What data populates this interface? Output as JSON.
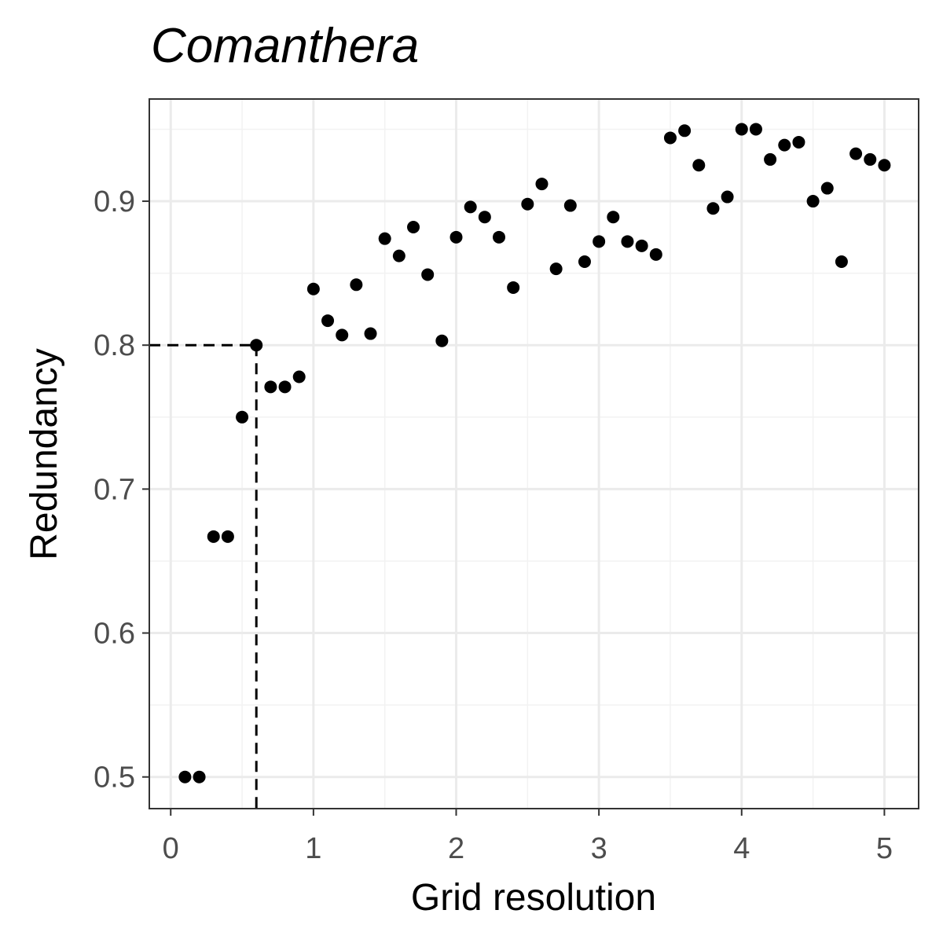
{
  "chart_data": {
    "type": "scatter",
    "title": "Comanthera",
    "xlabel": "Grid resolution",
    "ylabel": "Redundancy",
    "xlim": [
      -0.15,
      5.24
    ],
    "ylim": [
      0.478,
      0.971
    ],
    "x_ticks": [
      0,
      1,
      2,
      3,
      4,
      5
    ],
    "x_tick_labels": [
      "0",
      "1",
      "2",
      "3",
      "4",
      "5"
    ],
    "y_ticks": [
      0.5,
      0.6,
      0.7,
      0.8,
      0.9
    ],
    "y_tick_labels": [
      "0.5",
      "0.6",
      "0.7",
      "0.8",
      "0.9"
    ],
    "grid": true,
    "reference_point": {
      "x": 0.6,
      "y": 0.8
    },
    "x": [
      0.1,
      0.2,
      0.3,
      0.4,
      0.5,
      0.6,
      0.7,
      0.8,
      0.9,
      1.0,
      1.1,
      1.2,
      1.3,
      1.4,
      1.5,
      1.6,
      1.7,
      1.8,
      1.9,
      2.0,
      2.1,
      2.2,
      2.3,
      2.4,
      2.5,
      2.6,
      2.7,
      2.8,
      2.9,
      3.0,
      3.1,
      3.2,
      3.3,
      3.4,
      3.5,
      3.6,
      3.7,
      3.8,
      3.9,
      4.0,
      4.1,
      4.2,
      4.3,
      4.4,
      4.5,
      4.6,
      4.7,
      4.8,
      4.9,
      5.0
    ],
    "y": [
      0.5,
      0.5,
      0.667,
      0.667,
      0.75,
      0.8,
      0.771,
      0.771,
      0.778,
      0.839,
      0.817,
      0.807,
      0.842,
      0.808,
      0.874,
      0.862,
      0.882,
      0.849,
      0.803,
      0.875,
      0.896,
      0.889,
      0.875,
      0.84,
      0.898,
      0.912,
      0.853,
      0.897,
      0.858,
      0.872,
      0.889,
      0.872,
      0.869,
      0.863,
      0.944,
      0.949,
      0.925,
      0.895,
      0.903,
      0.95,
      0.95,
      0.929,
      0.939,
      0.941,
      0.9,
      0.909,
      0.858,
      0.933,
      0.929,
      0.925
    ]
  }
}
